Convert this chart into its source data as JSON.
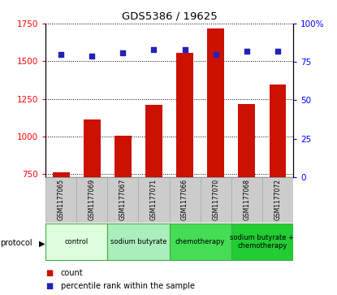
{
  "title": "GDS5386 / 19625",
  "samples": [
    "GSM1177065",
    "GSM1177069",
    "GSM1177067",
    "GSM1177071",
    "GSM1177066",
    "GSM1177070",
    "GSM1177068",
    "GSM1177072"
  ],
  "counts": [
    760,
    1115,
    1005,
    1210,
    1555,
    1720,
    1215,
    1345
  ],
  "percentile_ranks": [
    80,
    79,
    81,
    83,
    83,
    80,
    82,
    82
  ],
  "ylim_left": [
    730,
    1750
  ],
  "ylim_right": [
    0,
    100
  ],
  "yticks_left": [
    750,
    1000,
    1250,
    1500,
    1750
  ],
  "yticks_right": [
    0,
    25,
    50,
    75,
    100
  ],
  "bar_color": "#cc1100",
  "dot_color": "#2222bb",
  "groups": [
    {
      "label": "control",
      "indices": [
        0,
        1
      ],
      "color": "#ddffdd"
    },
    {
      "label": "sodium butyrate",
      "indices": [
        2,
        3
      ],
      "color": "#aaeebb"
    },
    {
      "label": "chemotherapy",
      "indices": [
        4,
        5
      ],
      "color": "#44dd55"
    },
    {
      "label": "sodium butyrate +\nchemotherapy",
      "indices": [
        6,
        7
      ],
      "color": "#22cc33"
    }
  ],
  "protocol_label": "protocol",
  "legend_count_label": "count",
  "legend_pct_label": "percentile rank within the sample",
  "legend_count_color": "#cc1100",
  "legend_pct_color": "#2222bb",
  "grid_linestyle": "dotted",
  "bar_bottom": 730,
  "sample_box_color": "#cccccc",
  "sample_box_edge": "#aaaaaa"
}
